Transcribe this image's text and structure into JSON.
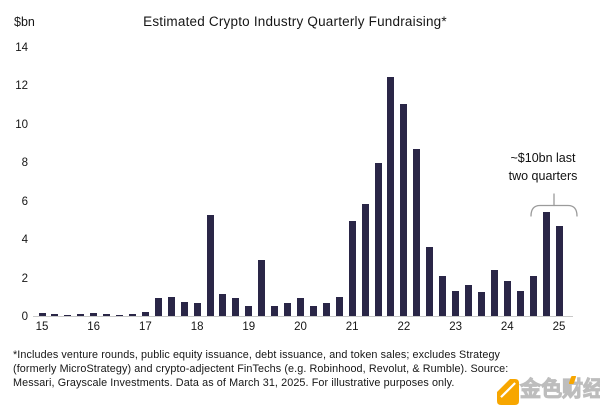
{
  "chart_data": {
    "type": "bar",
    "title": "Estimated Crypto Industry Quarterly Fundraising*",
    "y_unit_label": "$bn",
    "ylim": [
      0,
      14
    ],
    "yticks": [
      0,
      2,
      4,
      6,
      8,
      10,
      12,
      14
    ],
    "x_year_labels": [
      "15",
      "16",
      "17",
      "18",
      "19",
      "20",
      "21",
      "22",
      "23",
      "24",
      "25"
    ],
    "quarters": [
      "15Q1",
      "15Q2",
      "15Q3",
      "15Q4",
      "16Q1",
      "16Q2",
      "16Q3",
      "16Q4",
      "17Q1",
      "17Q2",
      "17Q3",
      "17Q4",
      "18Q1",
      "18Q2",
      "18Q3",
      "18Q4",
      "19Q1",
      "19Q2",
      "19Q3",
      "19Q4",
      "20Q1",
      "20Q2",
      "20Q3",
      "20Q4",
      "21Q1",
      "21Q2",
      "21Q3",
      "21Q4",
      "22Q1",
      "22Q2",
      "22Q3",
      "22Q4",
      "23Q1",
      "23Q2",
      "23Q3",
      "23Q4",
      "24Q1",
      "24Q2",
      "24Q3",
      "24Q4",
      "25Q1"
    ],
    "values": [
      0.17,
      0.1,
      0.07,
      0.08,
      0.16,
      0.1,
      0.06,
      0.08,
      0.2,
      0.95,
      1.0,
      0.75,
      0.7,
      5.25,
      1.15,
      0.95,
      0.5,
      2.9,
      0.5,
      0.7,
      0.95,
      0.5,
      0.7,
      1.0,
      4.95,
      5.85,
      7.95,
      12.45,
      11.05,
      8.7,
      3.6,
      2.1,
      1.3,
      1.6,
      1.25,
      2.4,
      1.8,
      1.3,
      2.1,
      5.4,
      4.7
    ],
    "bar_color": "#2a2647",
    "axis_line_color": "#c9c9c9",
    "grid": "off",
    "legend": "none",
    "annotation": {
      "text": "~$10bn last\ntwo quarters",
      "brace_color": "#9b9b9b"
    }
  },
  "footnote": {
    "text": "*Includes venture rounds, public equity issuance, debt issuance, and token sales; excludes Strategy\n(formerly MicroStrategy) and crypto-adjectent FinTechs (e.g. Robinhood, Revolut, & Rumble). Source:\nMessari, Grayscale Investments. Data as of March 31, 2025. For illustrative purposes only."
  },
  "watermark": {
    "text": "金色财经",
    "icon_color": "#f7a600"
  }
}
